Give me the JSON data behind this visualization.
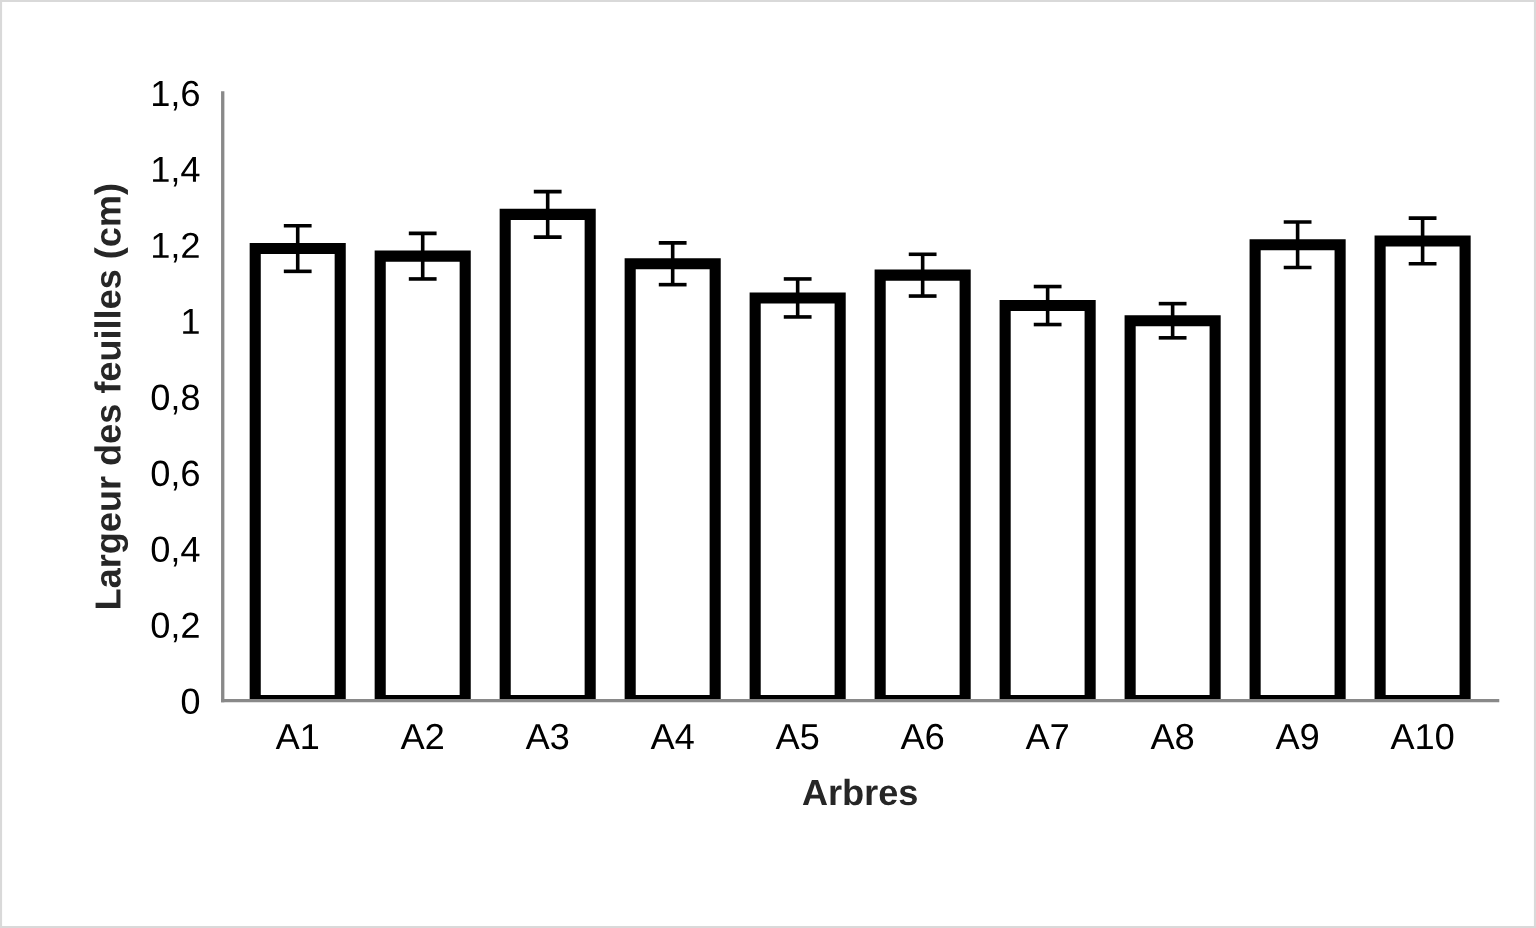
{
  "chart_data": {
    "type": "bar",
    "xlabel": "Arbres",
    "ylabel": "Largeur des feuilles (cm)",
    "categories": [
      "A1",
      "A2",
      "A3",
      "A4",
      "A5",
      "A6",
      "A7",
      "A8",
      "A9",
      "A10"
    ],
    "values": [
      1.19,
      1.17,
      1.28,
      1.15,
      1.06,
      1.12,
      1.04,
      1.0,
      1.2,
      1.21
    ],
    "errors": [
      0.06,
      0.06,
      0.06,
      0.055,
      0.05,
      0.055,
      0.05,
      0.045,
      0.06,
      0.06
    ],
    "color": "#ffffff",
    "ylim": [
      0,
      1.6
    ],
    "yticks": [
      {
        "value": 0,
        "label": "0"
      },
      {
        "value": 0.2,
        "label": "0,2"
      },
      {
        "value": 0.4,
        "label": "0,4"
      },
      {
        "value": 0.6,
        "label": "0,6"
      },
      {
        "value": 0.8,
        "label": "0,8"
      },
      {
        "value": 1,
        "label": "1"
      },
      {
        "value": 1.2,
        "label": "1,2"
      },
      {
        "value": 1.4,
        "label": "1,4"
      },
      {
        "value": 1.6,
        "label": "1,6"
      }
    ],
    "grid": false,
    "legend": false
  }
}
